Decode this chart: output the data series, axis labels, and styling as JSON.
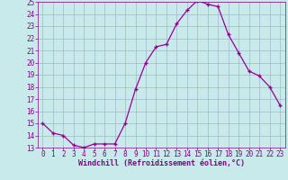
{
  "hours": [
    0,
    1,
    2,
    3,
    4,
    5,
    6,
    7,
    8,
    9,
    10,
    11,
    12,
    13,
    14,
    15,
    16,
    17,
    18,
    19,
    20,
    21,
    22,
    23
  ],
  "values": [
    15.0,
    14.2,
    14.0,
    13.2,
    13.0,
    13.3,
    13.3,
    13.3,
    15.0,
    17.8,
    20.0,
    21.3,
    21.5,
    23.2,
    24.3,
    25.1,
    24.8,
    24.6,
    22.3,
    20.8,
    19.3,
    18.9,
    18.0,
    16.5
  ],
  "line_color": "#990099",
  "marker_color": "#990099",
  "bg_color": "#c8eaea",
  "grid_color": "#a0b8c8",
  "xlabel": "Windchill (Refroidissement éolien,°C)",
  "ylim": [
    13,
    25
  ],
  "xlim_min": -0.5,
  "xlim_max": 23.5,
  "yticks": [
    13,
    14,
    15,
    16,
    17,
    18,
    19,
    20,
    21,
    22,
    23,
    24,
    25
  ],
  "xticks": [
    0,
    1,
    2,
    3,
    4,
    5,
    6,
    7,
    8,
    9,
    10,
    11,
    12,
    13,
    14,
    15,
    16,
    17,
    18,
    19,
    20,
    21,
    22,
    23
  ],
  "tick_color": "#880088",
  "label_color": "#880088",
  "tick_fontsize": 5.5,
  "xlabel_fontsize": 6.0
}
